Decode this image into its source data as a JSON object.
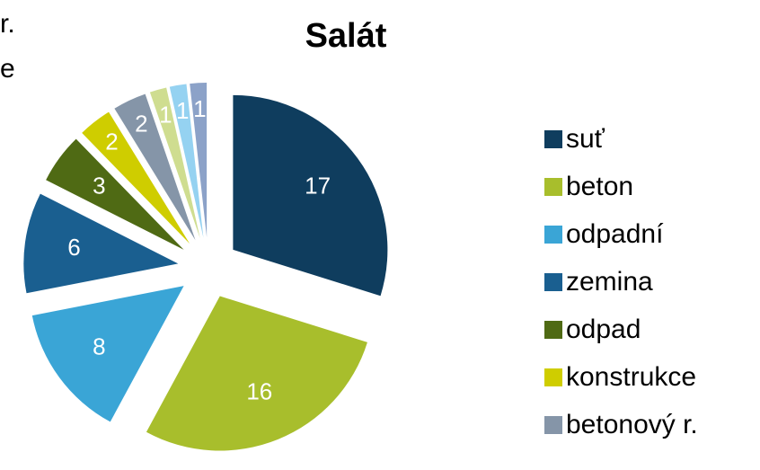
{
  "chart_data": {
    "type": "pie",
    "title": "Salát",
    "cropped_text": [
      "r.",
      "e"
    ],
    "categories": [
      "suť",
      "beton",
      "odpadní",
      "zemina",
      "odpad",
      "konstrukce",
      "betonový r.",
      null,
      null,
      null
    ],
    "values": [
      17,
      16,
      8,
      6,
      3,
      2,
      2,
      1,
      1,
      1
    ],
    "colors": [
      "#0f3d5e",
      "#a8be2c",
      "#3aa5d6",
      "#1a5f90",
      "#4f6a14",
      "#cfcd00",
      "#8595a8",
      "#cfdd90",
      "#95d2f1",
      "#8ca2c8"
    ],
    "legend": "right"
  }
}
